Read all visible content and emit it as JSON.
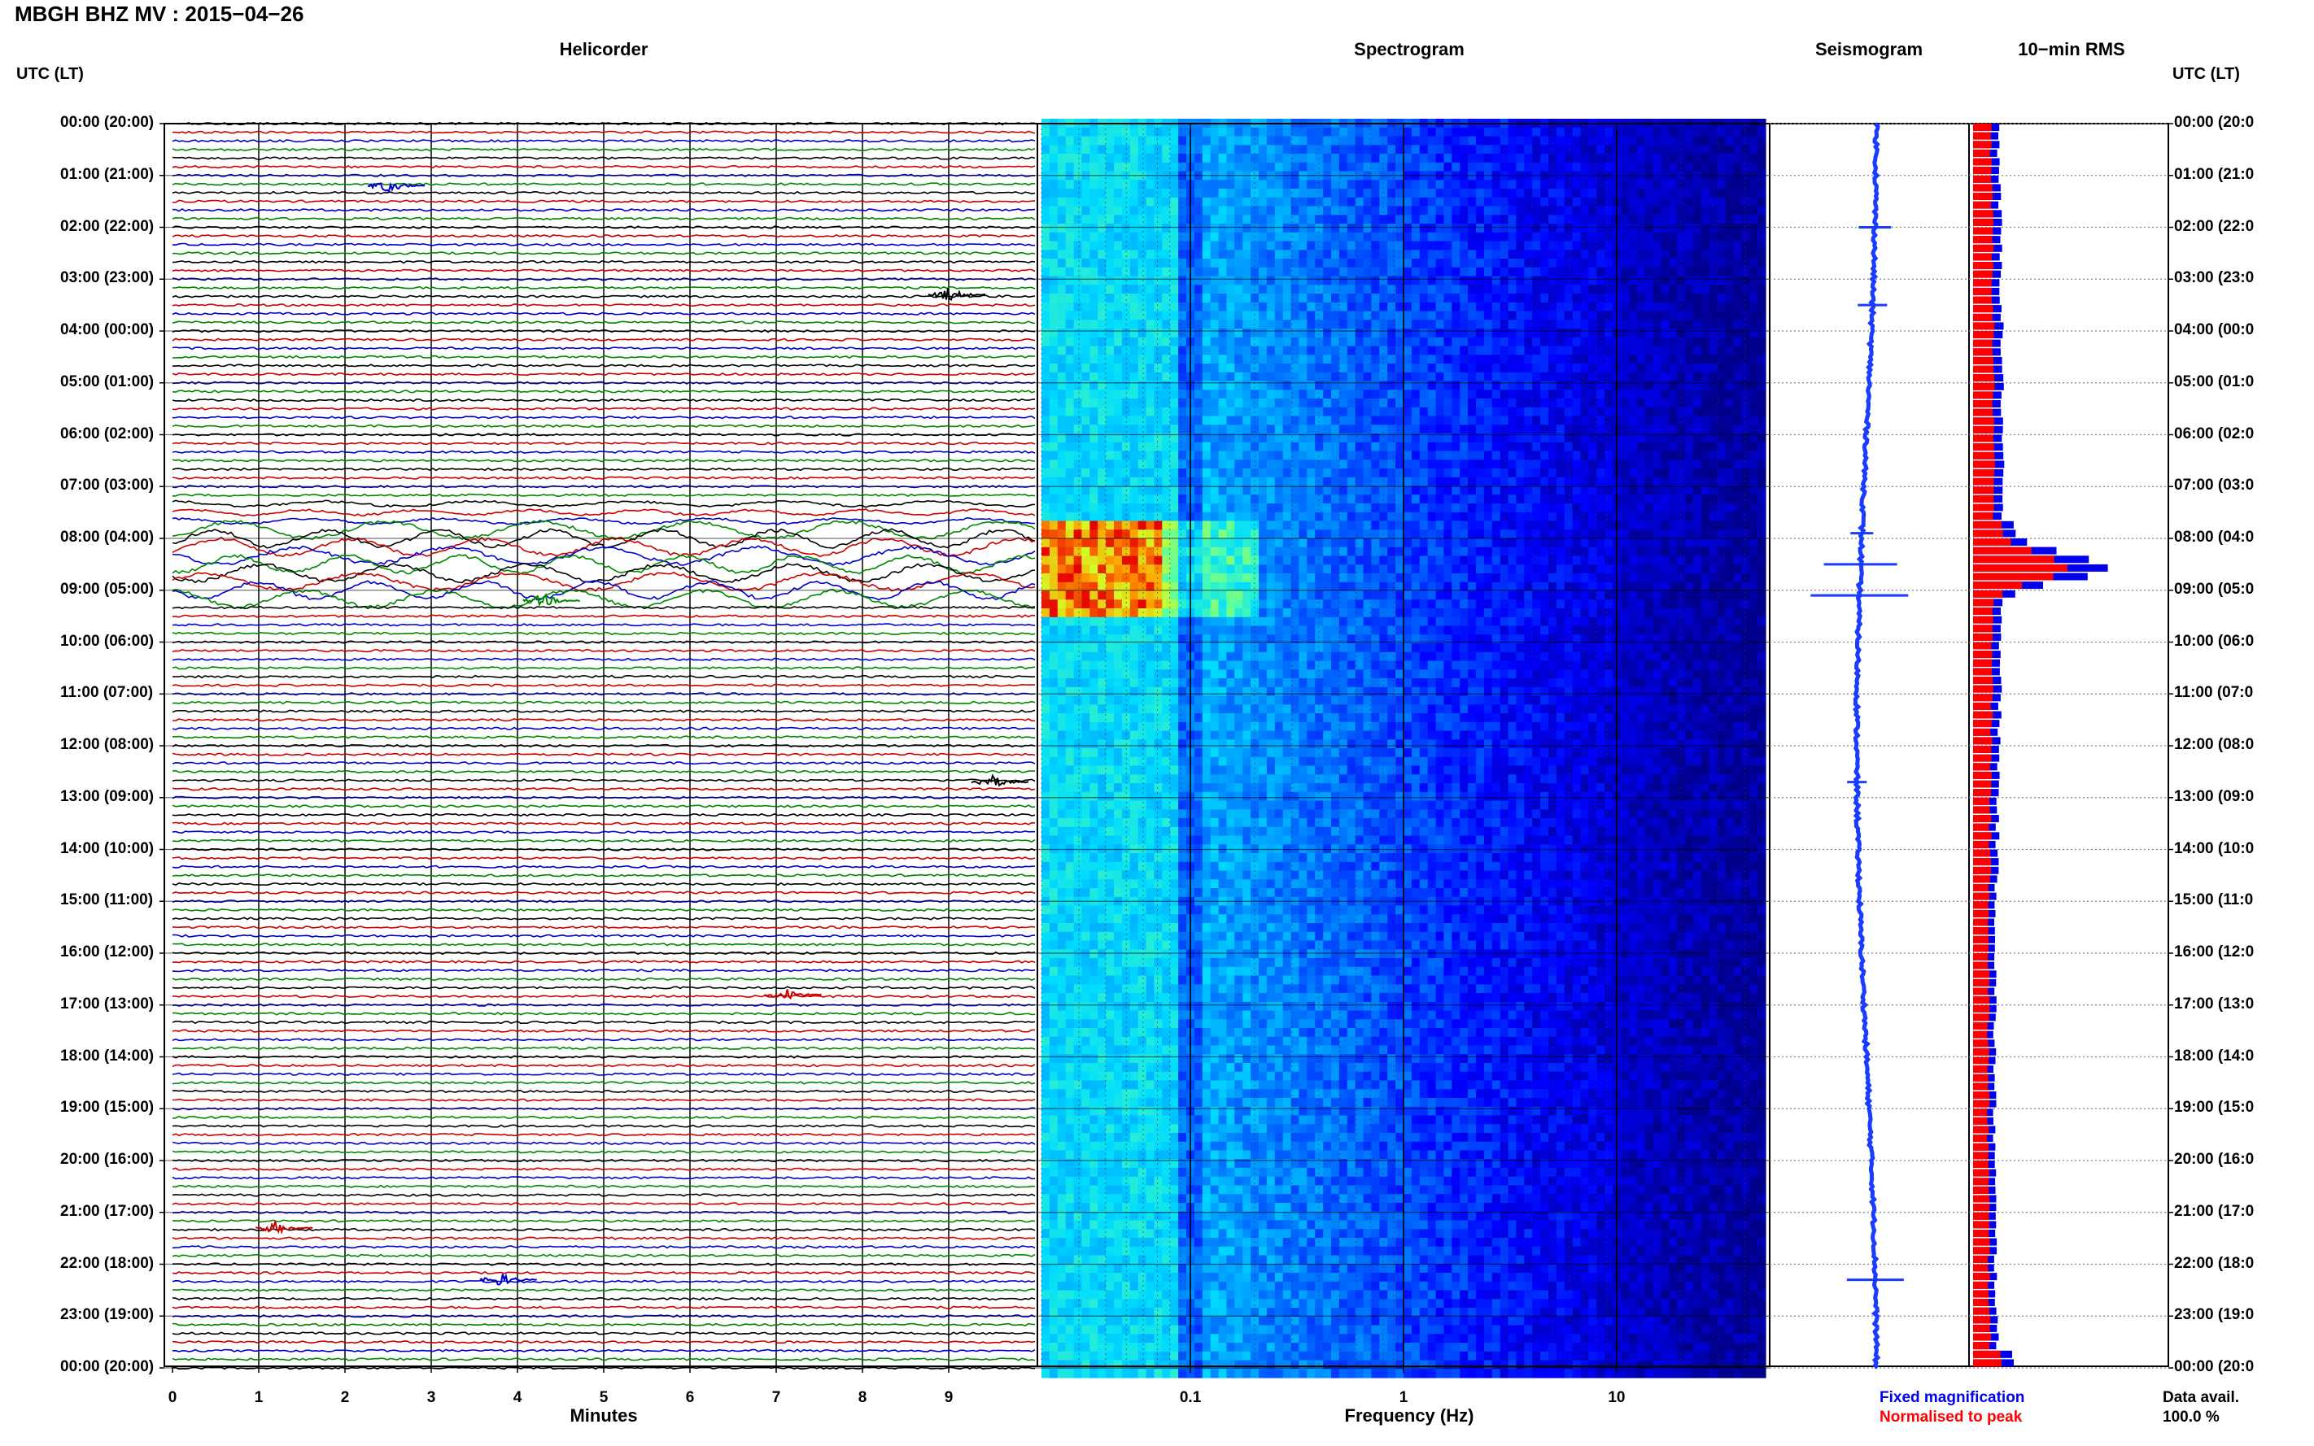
{
  "header": {
    "title": "MBGH BHZ MV : 2015−04−26"
  },
  "panels": {
    "helicorder": "Helicorder",
    "spectrogram": "Spectrogram",
    "seismogram": "Seismogram",
    "rms": "10−min RMS"
  },
  "axes": {
    "left_head": "UTC (LT)",
    "right_head": "UTC (LT)",
    "x_helicorder_label": "Minutes",
    "x_spectrogram_label": "Frequency (Hz)"
  },
  "legend": {
    "fixed": "Fixed magnification",
    "normalised": "Normalised to peak",
    "data_avail": "Data avail.",
    "data_pct": "100.0 %"
  },
  "colors": {
    "helicorder_traces": [
      "#000000",
      "#cc0000",
      "#0000cc",
      "#008800"
    ],
    "seismogram": "#1a3cff",
    "rms_fixed": "#0000ee",
    "rms_normalised": "#ff0000"
  },
  "chart_data": [
    {
      "type": "line",
      "name": "helicorder",
      "title": "Helicorder",
      "xlabel": "Minutes",
      "x_ticks": [
        "0",
        "1",
        "2",
        "3",
        "4",
        "5",
        "6",
        "7",
        "8",
        "9"
      ],
      "xlim": [
        0,
        10
      ],
      "time_labels_left": [
        "00:00 (20:00)",
        "01:00 (21:00)",
        "02:00 (22:00)",
        "03:00 (23:00)",
        "04:00 (00:00)",
        "05:00 (01:00)",
        "06:00 (02:00)",
        "07:00 (03:00)",
        "08:00 (04:00)",
        "09:00 (05:00)",
        "10:00 (06:00)",
        "11:00 (07:00)",
        "12:00 (08:00)",
        "13:00 (09:00)",
        "14:00 (10:00)",
        "15:00 (11:00)",
        "16:00 (12:00)",
        "17:00 (13:00)",
        "18:00 (14:00)",
        "19:00 (15:00)",
        "20:00 (16:00)",
        "21:00 (17:00)",
        "22:00 (18:00)",
        "23:00 (19:00)",
        "00:00 (20:00)"
      ],
      "traces_per_hour": 6,
      "events": [
        {
          "hour": 1.2,
          "minute": 2.5,
          "color_index": 2
        },
        {
          "hour": 3.3,
          "minute": 9.0,
          "color_index": 0
        },
        {
          "hour": 9.2,
          "minute": 4.3,
          "color_index": 3
        },
        {
          "hour": 12.7,
          "minute": 9.5,
          "color_index": 0
        },
        {
          "hour": 16.8,
          "minute": 7.1,
          "color_index": 1
        },
        {
          "hour": 21.3,
          "minute": 1.2,
          "color_index": 1
        },
        {
          "hour": 22.3,
          "minute": 3.8,
          "color_index": 2
        }
      ]
    },
    {
      "type": "heatmap",
      "name": "spectrogram",
      "title": "Spectrogram",
      "xlabel": "Frequency (Hz)",
      "x_scale": "log",
      "x_ticks": [
        "0.1",
        "1",
        "10"
      ],
      "xlim": [
        0.02,
        50
      ],
      "hours": 24
    },
    {
      "type": "line",
      "name": "seismogram",
      "title": "Seismogram",
      "hours": 24
    },
    {
      "type": "bar",
      "name": "rms",
      "title": "10−min RMS",
      "time_labels_right": [
        "00:00 (20:0",
        "01:00 (21:0",
        "02:00 (22:0",
        "03:00 (23:0",
        "04:00 (00:0",
        "05:00 (01:0",
        "06:00 (02:0",
        "07:00 (03:0",
        "08:00 (04:0",
        "09:00 (05:0",
        "10:00 (06:0",
        "11:00 (07:0",
        "12:00 (08:0",
        "13:00 (09:0",
        "14:00 (10:0",
        "15:00 (11:0",
        "16:00 (12:0",
        "17:00 (13:0",
        "18:00 (14:0",
        "19:00 (15:0",
        "20:00 (16:0",
        "21:00 (17:0",
        "22:00 (18:0",
        "23:00 (19:0",
        "00:00 (20:0"
      ],
      "series": [
        {
          "name": "Fixed magnification",
          "peak_hour": 8.5,
          "peak_value": 1.0
        },
        {
          "name": "Normalised to peak",
          "peak_hour": 8.5,
          "peak_value": 1.0
        }
      ]
    }
  ]
}
